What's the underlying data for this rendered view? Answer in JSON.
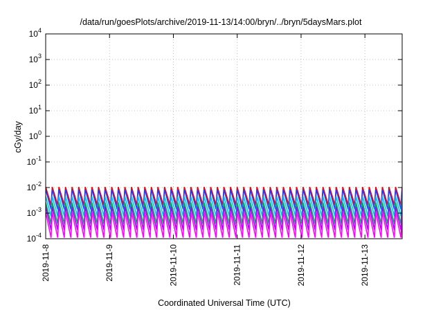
{
  "chart_data": {
    "type": "line",
    "title": "/data/run/goesPlots/archive/2019-11-13/14:00/bryn/../bryn/5daysMars.plot",
    "xlabel": "Coordinated Universal Time (UTC)",
    "ylabel": "cGy/day",
    "y_scale": "log",
    "ylim": [
      0.0001,
      10000
    ],
    "x_range": [
      "2019-11-08T00:00",
      "2019-11-13T14:00"
    ],
    "x_ticks": [
      "2019-11-8",
      "2019-11-9",
      "2019-11-10",
      "2019-11-11",
      "2019-11-12",
      "2019-11-13"
    ],
    "y_ticks": [
      {
        "base": "10",
        "exp": "-4"
      },
      {
        "base": "10",
        "exp": "-3"
      },
      {
        "base": "10",
        "exp": "-2"
      },
      {
        "base": "10",
        "exp": "-1"
      },
      {
        "base": "10",
        "exp": "0"
      },
      {
        "base": "10",
        "exp": "1"
      },
      {
        "base": "10",
        "exp": "2"
      },
      {
        "base": "10",
        "exp": "3"
      },
      {
        "base": "10",
        "exp": "4"
      }
    ],
    "grid": true,
    "series": [
      {
        "color": "#ff0000",
        "peak": 0.0105,
        "trough": 0.0021
      },
      {
        "color": "#1e3cff",
        "peak": 0.0085,
        "trough": 0.0014
      },
      {
        "color": "#00c0ff",
        "peak": 0.0045,
        "trough": 0.00075
      },
      {
        "color": "#00b050",
        "peak": 0.0026,
        "trough": 0.00038
      },
      {
        "color": "#9a00ff",
        "peak": 0.0018,
        "trough": 0.00022
      },
      {
        "color": "#ff00ff",
        "peak": 0.0011,
        "trough": 0.00011
      }
    ]
  }
}
